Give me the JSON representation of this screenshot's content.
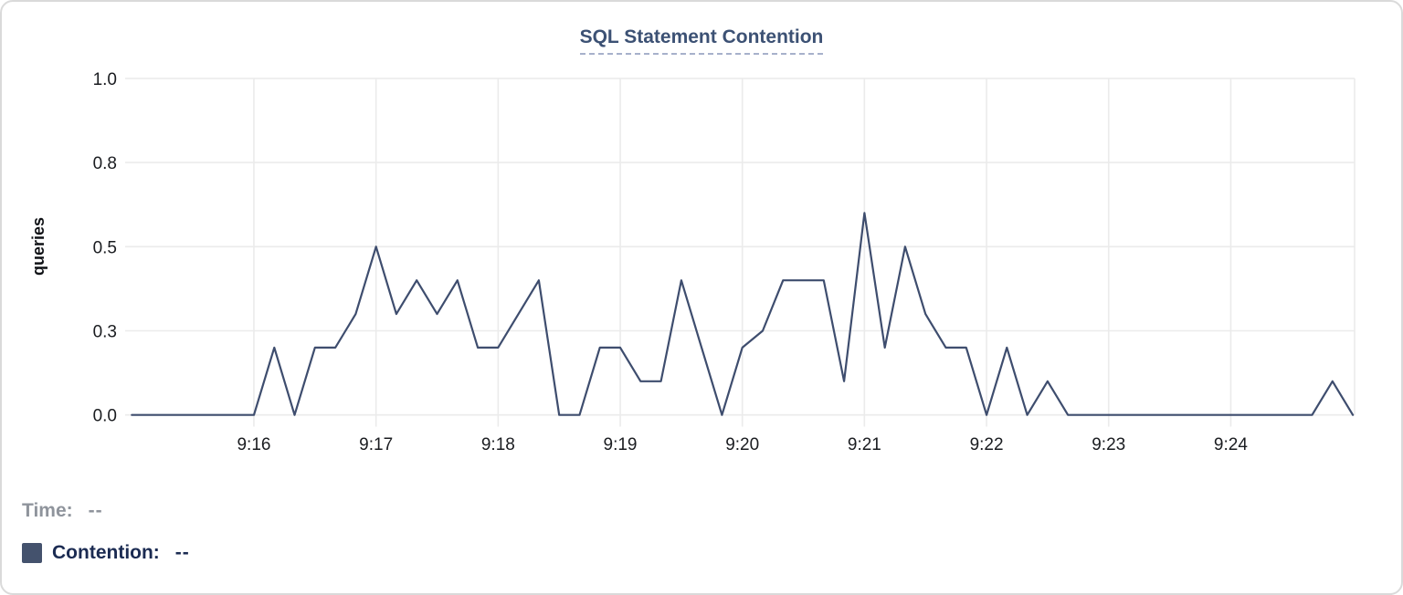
{
  "chart_data": {
    "type": "line",
    "title": "SQL Statement Contention",
    "xlabel": "",
    "ylabel": "queries",
    "ylim": [
      0,
      1
    ],
    "grid": true,
    "legend_position": "bottom-left",
    "x_start": "9:15:00",
    "x_interval_seconds": 10,
    "x_tick_labels": [
      "9:16",
      "9:17",
      "9:18",
      "9:19",
      "9:20",
      "9:21",
      "9:22",
      "9:23",
      "9:24"
    ],
    "y_tick_values": [
      0,
      0.25,
      0.5,
      0.75,
      1.0
    ],
    "y_tick_labels": [
      "0.0",
      "0.3",
      "0.5",
      "0.8",
      "1.0"
    ],
    "series": [
      {
        "name": "Contention",
        "unit": "queries",
        "color": "#3e4d6e",
        "values": [
          0,
          0,
          0,
          0,
          0,
          0,
          0,
          0.2,
          0,
          0.2,
          0.2,
          0.3,
          0.5,
          0.3,
          0.4,
          0.3,
          0.4,
          0.2,
          0.2,
          0.3,
          0.4,
          0,
          0,
          0.2,
          0.2,
          0.1,
          0.1,
          0.4,
          0.2,
          0,
          0.2,
          0.25,
          0.4,
          0.4,
          0.4,
          0.1,
          0.6,
          0.2,
          0.5,
          0.3,
          0.2,
          0.2,
          0,
          0.2,
          0,
          0.1,
          0,
          0,
          0,
          0,
          0,
          0,
          0,
          0,
          0,
          0,
          0,
          0,
          0,
          0.1,
          0
        ]
      }
    ]
  },
  "legend": {
    "time_label": "Time:",
    "time_value": "--",
    "contention_label": "Contention:",
    "contention_value": "--",
    "swatch_color": "#44526d"
  },
  "colors": {
    "title_text": "#3c5174",
    "title_underline": "#a7b1cb",
    "grid": "#ebebeb",
    "tick_text": "#1a1c20",
    "time_label_gray": "#8f949c",
    "navy_text": "#1b2b52",
    "line": "#3e4d6e",
    "card_border": "#dadada"
  }
}
